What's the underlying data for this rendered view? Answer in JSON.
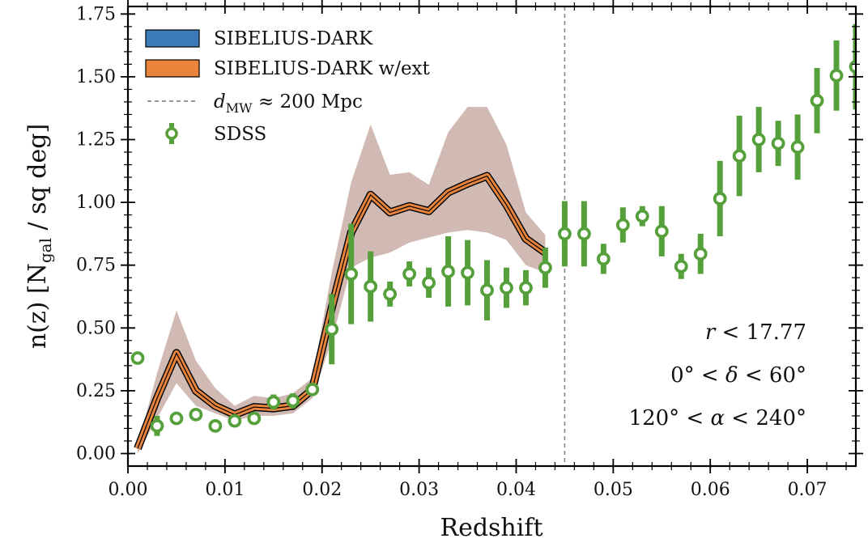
{
  "chart_data": {
    "type": "line",
    "xlabel": "Redshift",
    "ylabel": {
      "main": "n(z) [N",
      "sub": "gal",
      "tail": " / sq deg]"
    },
    "xlim": [
      0.0,
      0.075
    ],
    "ylim": [
      -0.05,
      1.78
    ],
    "xticks": [
      0.0,
      0.01,
      0.02,
      0.03,
      0.04,
      0.05,
      0.06,
      0.07
    ],
    "xtick_labels": [
      "0.00",
      "0.01",
      "0.02",
      "0.03",
      "0.04",
      "0.05",
      "0.06",
      "0.07"
    ],
    "yticks": [
      0.0,
      0.25,
      0.5,
      0.75,
      1.0,
      1.25,
      1.5,
      1.75
    ],
    "ytick_labels": [
      "0.00",
      "0.25",
      "0.50",
      "0.75",
      "1.00",
      "1.25",
      "1.50",
      "1.75"
    ],
    "grid": false,
    "legend_position": "top-left",
    "vline": {
      "x": 0.045,
      "label_main": "d",
      "label_sub": "MW",
      "label_tail": " ≈ 200 Mpc"
    },
    "series": [
      {
        "name": "SIBELIUS-DARK",
        "kind": "line",
        "color": "#3d7ab8",
        "x": [
          0.001,
          0.003,
          0.005,
          0.007,
          0.009,
          0.011,
          0.013,
          0.015,
          0.017,
          0.019,
          0.021,
          0.023,
          0.025,
          0.027,
          0.029,
          0.031,
          0.033,
          0.035,
          0.037,
          0.039,
          0.041,
          0.043
        ],
        "y": [
          0.02,
          0.22,
          0.4,
          0.25,
          0.19,
          0.155,
          0.185,
          0.18,
          0.19,
          0.255,
          0.58,
          0.88,
          1.03,
          0.96,
          0.985,
          0.965,
          1.04,
          1.075,
          1.105,
          0.99,
          0.855,
          0.8
        ]
      },
      {
        "name": "SIBELIUS-DARK w/ext",
        "kind": "line",
        "color": "#e9843a",
        "x": [
          0.001,
          0.003,
          0.005,
          0.007,
          0.009,
          0.011,
          0.013,
          0.015,
          0.017,
          0.019,
          0.021,
          0.023,
          0.025,
          0.027,
          0.029,
          0.031,
          0.033,
          0.035,
          0.037,
          0.039,
          0.041,
          0.043
        ],
        "y": [
          0.02,
          0.22,
          0.4,
          0.25,
          0.19,
          0.155,
          0.185,
          0.18,
          0.19,
          0.255,
          0.58,
          0.88,
          1.03,
          0.96,
          0.985,
          0.965,
          1.04,
          1.075,
          1.105,
          0.99,
          0.855,
          0.8
        ],
        "band_lo": [
          0.0,
          0.14,
          0.28,
          0.19,
          0.16,
          0.13,
          0.15,
          0.15,
          0.16,
          0.22,
          0.45,
          0.74,
          0.78,
          0.8,
          0.84,
          0.86,
          0.88,
          0.89,
          0.88,
          0.85,
          0.75,
          0.72
        ],
        "band_hi": [
          0.03,
          0.32,
          0.57,
          0.37,
          0.26,
          0.19,
          0.23,
          0.22,
          0.24,
          0.3,
          0.72,
          1.08,
          1.31,
          1.11,
          1.12,
          1.07,
          1.28,
          1.38,
          1.38,
          1.23,
          0.96,
          0.87
        ],
        "band_color": "#c8aea6"
      },
      {
        "name": "SDSS",
        "kind": "errorbar",
        "color": "#56a03c",
        "x": [
          0.001,
          0.003,
          0.005,
          0.007,
          0.009,
          0.011,
          0.013,
          0.015,
          0.017,
          0.019,
          0.021,
          0.023,
          0.025,
          0.027,
          0.029,
          0.031,
          0.033,
          0.035,
          0.037,
          0.039,
          0.041,
          0.043,
          0.045,
          0.047,
          0.049,
          0.051,
          0.053,
          0.055,
          0.057,
          0.059,
          0.061,
          0.063,
          0.065,
          0.067,
          0.069,
          0.071,
          0.073,
          0.075
        ],
        "y": [
          0.38,
          0.11,
          0.14,
          0.155,
          0.11,
          0.13,
          0.14,
          0.205,
          0.21,
          0.255,
          0.495,
          0.715,
          0.665,
          0.635,
          0.715,
          0.68,
          0.725,
          0.72,
          0.65,
          0.66,
          0.66,
          0.74,
          0.875,
          0.875,
          0.775,
          0.91,
          0.945,
          0.885,
          0.745,
          0.795,
          1.015,
          1.185,
          1.25,
          1.235,
          1.22,
          1.405,
          1.505,
          1.54
        ],
        "yerr": [
          0.0,
          0.04,
          0.0,
          0.0,
          0.0,
          0.0,
          0.0,
          0.03,
          0.03,
          0.02,
          0.14,
          0.2,
          0.14,
          0.05,
          0.05,
          0.06,
          0.14,
          0.13,
          0.12,
          0.08,
          0.07,
          0.08,
          0.13,
          0.13,
          0.06,
          0.07,
          0.04,
          0.1,
          0.05,
          0.08,
          0.15,
          0.16,
          0.13,
          0.09,
          0.13,
          0.13,
          0.14,
          0.17
        ]
      }
    ],
    "annotations": [
      {
        "parts": [
          [
            "r",
            "it"
          ],
          [
            " < 17.77",
            ""
          ]
        ]
      },
      {
        "parts": [
          [
            "0° < ",
            ""
          ],
          [
            "δ",
            "it"
          ],
          [
            " < 60°",
            ""
          ]
        ]
      },
      {
        "parts": [
          [
            "120° < ",
            ""
          ],
          [
            "α",
            "it"
          ],
          [
            " < 240°",
            ""
          ]
        ]
      }
    ]
  }
}
